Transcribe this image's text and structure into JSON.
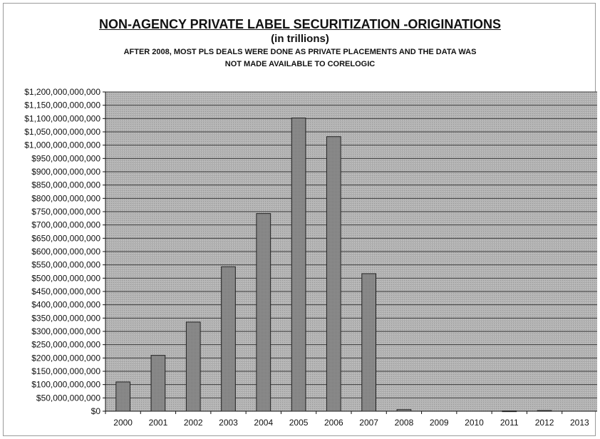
{
  "chart_data": {
    "type": "bar",
    "title": "NON-AGENCY PRIVATE LABEL SECURITIZATION -ORIGINATIONS",
    "subtitle": "(in trillions)",
    "annotation": [
      "AFTER 2008, MOST PLS DEALS WERE DONE AS PRIVATE PLACEMENTS AND THE DATA WAS",
      "NOT MADE AVAILABLE TO CORELOGIC"
    ],
    "xlabel": "",
    "ylabel": "",
    "categories": [
      "2000",
      "2001",
      "2002",
      "2003",
      "2004",
      "2005",
      "2006",
      "2007",
      "2008",
      "2009",
      "2010",
      "2011",
      "2012",
      "2013"
    ],
    "values": [
      110000000000,
      210000000000,
      335000000000,
      543000000000,
      743000000000,
      1102000000000,
      1032000000000,
      517000000000,
      6000000000,
      0,
      0,
      1000000000,
      2500000000,
      0
    ],
    "ylim": [
      0,
      1200000000000
    ],
    "ytick_step": 50000000000,
    "ytick_labels": [
      "$0",
      "$50,000,000,000",
      "$100,000,000,000",
      "$150,000,000,000",
      "$200,000,000,000",
      "$250,000,000,000",
      "$300,000,000,000",
      "$350,000,000,000",
      "$400,000,000,000",
      "$450,000,000,000",
      "$500,000,000,000",
      "$550,000,000,000",
      "$600,000,000,000",
      "$650,000,000,000",
      "$700,000,000,000",
      "$750,000,000,000",
      "$800,000,000,000",
      "$850,000,000,000",
      "$900,000,000,000",
      "$950,000,000,000",
      "$1,000,000,000,000",
      "$1,050,000,000,000",
      "$1,100,000,000,000",
      "$1,150,000,000,000",
      "$1,200,000,000,000"
    ],
    "grid": true,
    "legend": "none",
    "colors": {
      "plot_background": "#b3b3b3",
      "bar": "#8c8c8c",
      "bar_edge": "#222222",
      "grid": "#3a3a3a"
    }
  }
}
